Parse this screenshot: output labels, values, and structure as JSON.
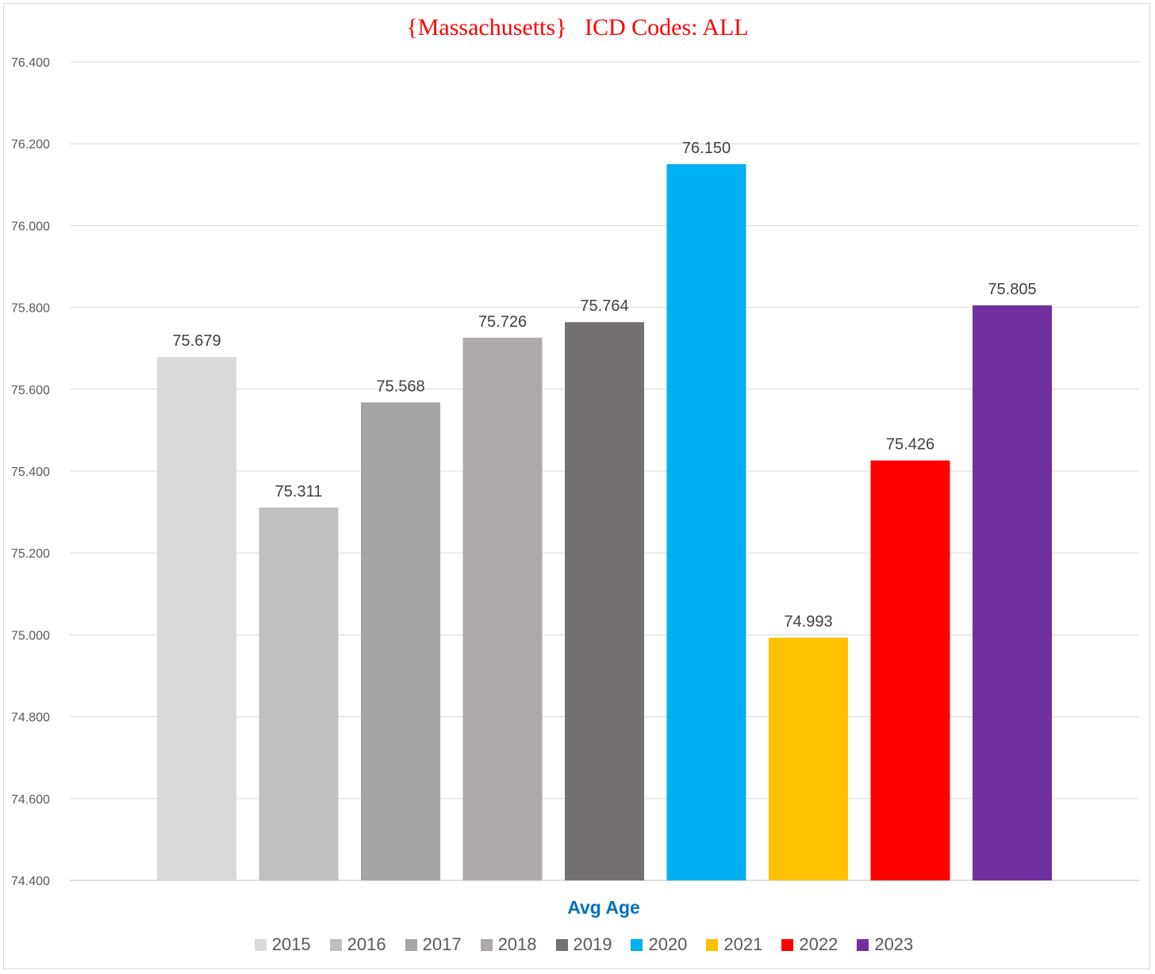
{
  "chart_data": {
    "type": "bar",
    "title": "{Massachusetts}   ICD Codes: ALL",
    "xlabel": "Avg Age",
    "ylabel": "",
    "ylim": [
      74.4,
      76.4
    ],
    "ytick_step": 0.2,
    "ytick_labels": [
      "74.400",
      "74.600",
      "74.800",
      "75.000",
      "75.200",
      "75.400",
      "75.600",
      "75.800",
      "76.000",
      "76.200",
      "76.400"
    ],
    "grid": true,
    "legend_position": "bottom",
    "categories": [
      "Avg Age"
    ],
    "series": [
      {
        "name": "2015",
        "value": 75.679,
        "label": "75.679",
        "color": "#d9d9d9"
      },
      {
        "name": "2016",
        "value": 75.311,
        "label": "75.311",
        "color": "#bfbfbf"
      },
      {
        "name": "2017",
        "value": 75.568,
        "label": "75.568",
        "color": "#a5a5a5"
      },
      {
        "name": "2018",
        "value": 75.726,
        "label": "75.726",
        "color": "#aeaaaa"
      },
      {
        "name": "2019",
        "value": 75.764,
        "label": "75.764",
        "color": "#767171"
      },
      {
        "name": "2020",
        "value": 76.15,
        "label": "76.150",
        "color": "#00b0f0"
      },
      {
        "name": "2021",
        "value": 74.993,
        "label": "74.993",
        "color": "#ffc000"
      },
      {
        "name": "2022",
        "value": 75.426,
        "label": "75.426",
        "color": "#ff0000"
      },
      {
        "name": "2023",
        "value": 75.805,
        "label": "75.805",
        "color": "#7030a0"
      }
    ]
  }
}
